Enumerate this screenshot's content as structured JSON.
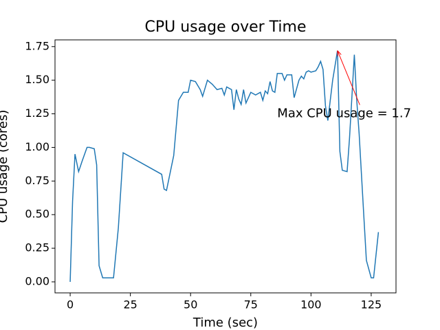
{
  "chart_data": {
    "type": "line",
    "title": "CPU usage over Time",
    "x_label": "Time (sec)",
    "y_label": "CPU usage (cores)",
    "x": [
      0,
      1,
      2,
      3.5,
      5,
      7,
      8,
      10,
      11,
      12,
      13.5,
      15,
      17,
      18,
      20,
      22,
      38,
      39,
      40,
      43,
      45,
      47,
      49,
      50,
      52,
      54,
      55,
      57,
      59,
      61,
      63,
      64,
      65,
      67,
      68,
      69,
      70,
      71,
      72,
      73,
      75,
      77,
      79,
      80,
      81,
      82,
      83,
      84,
      85,
      86,
      88,
      89,
      90,
      92,
      93,
      95,
      96,
      97,
      98,
      99,
      100,
      102,
      103,
      104,
      105,
      106,
      107,
      109,
      111,
      112,
      113,
      115,
      116,
      118,
      119,
      120,
      122,
      123,
      125,
      126,
      128
    ],
    "series": [
      {
        "color": "#1f77b4",
        "values": [
          0.0,
          0.6,
          0.95,
          0.82,
          0.9,
          1.0,
          1.0,
          0.99,
          0.87,
          0.12,
          0.03,
          0.03,
          0.03,
          0.03,
          0.4,
          0.96,
          0.8,
          0.69,
          0.68,
          0.94,
          1.35,
          1.41,
          1.41,
          1.5,
          1.49,
          1.43,
          1.38,
          1.5,
          1.47,
          1.43,
          1.44,
          1.39,
          1.45,
          1.43,
          1.28,
          1.43,
          1.36,
          1.32,
          1.43,
          1.33,
          1.41,
          1.39,
          1.41,
          1.35,
          1.42,
          1.4,
          1.49,
          1.42,
          1.41,
          1.55,
          1.55,
          1.5,
          1.54,
          1.54,
          1.37,
          1.5,
          1.53,
          1.51,
          1.56,
          1.57,
          1.56,
          1.57,
          1.6,
          1.64,
          1.58,
          1.31,
          1.2,
          1.5,
          1.72,
          0.97,
          0.83,
          0.82,
          1.07,
          1.69,
          1.35,
          1.1,
          0.47,
          0.16,
          0.03,
          0.03,
          0.37
        ]
      }
    ],
    "xlim": [
      -6.3,
      135.3
    ],
    "xticks": [
      0,
      25,
      50,
      75,
      100,
      125
    ],
    "ylim": [
      -0.082,
      1.8
    ],
    "yticks": [
      {
        "value": 0,
        "label": "0.00"
      },
      {
        "value": 0.25,
        "label": "0.25"
      },
      {
        "value": 0.5,
        "label": "0.50"
      },
      {
        "value": 0.75,
        "label": "0.75"
      },
      {
        "value": 1,
        "label": "1.00"
      },
      {
        "value": 1.25,
        "label": "1.25"
      },
      {
        "value": 1.5,
        "label": "1.50"
      },
      {
        "value": 1.75,
        "label": "1.75"
      }
    ],
    "annotation": {
      "text": "Max CPU usage = 1.7",
      "x": 111,
      "y": 1.72,
      "text_x": 86,
      "text_y": 1.25,
      "color": "red"
    }
  }
}
